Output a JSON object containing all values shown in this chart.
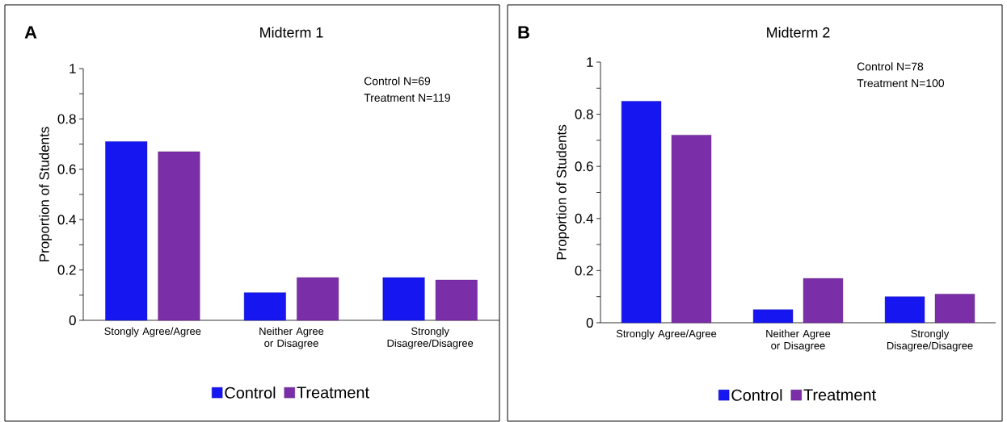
{
  "chart_data": [
    {
      "type": "bar",
      "title": "Midterm 1",
      "ylabel": "Proportion of Students",
      "annotations": [
        "A",
        "Control N=69",
        "Treatment N=119"
      ],
      "categories": [
        "Stongly Agree/Agree",
        "Neither Agree or Disagree",
        "Strongly Disagree/Disagree"
      ],
      "series": [
        {
          "name": "Control",
          "color": "#1616f0",
          "values": [
            0.71,
            0.11,
            0.17
          ]
        },
        {
          "name": "Treatment",
          "color": "#7a2ea8",
          "values": [
            0.67,
            0.17,
            0.16
          ]
        }
      ],
      "ylim": [
        0,
        1
      ],
      "yticks": [
        0,
        {
          "value": 0.1,
          "label": null
        },
        0.2,
        {
          "value": 0.3,
          "label": null
        },
        0.4,
        {
          "value": 0.5,
          "label": null
        },
        0.6,
        {
          "value": 0.7,
          "label": null
        },
        0.8,
        {
          "value": 0.9,
          "label": null
        },
        1
      ],
      "legend": "bottom"
    },
    {
      "type": "bar",
      "title": "Midterm 2",
      "ylabel": "Proportion of Students",
      "annotations": [
        "B",
        "Control N=78",
        "Treatment N=100"
      ],
      "categories": [
        "Strongly Agree/Agree",
        "Neither Agree or Disagree",
        "Strongly Disagree/Disagree"
      ],
      "series": [
        {
          "name": "Control",
          "color": "#1616f0",
          "values": [
            0.85,
            0.05,
            0.1
          ]
        },
        {
          "name": "Treatment",
          "color": "#7a2ea8",
          "values": [
            0.72,
            0.17,
            0.11
          ]
        }
      ],
      "ylim": [
        0,
        1
      ],
      "yticks": [
        0,
        {
          "value": 0.1,
          "label": null
        },
        0.2,
        {
          "value": 0.3,
          "label": null
        },
        0.4,
        {
          "value": 0.5,
          "label": null
        },
        0.6,
        {
          "value": 0.7,
          "label": null
        },
        0.8,
        {
          "value": 0.9,
          "label": null
        },
        1
      ],
      "legend": "bottom"
    }
  ]
}
